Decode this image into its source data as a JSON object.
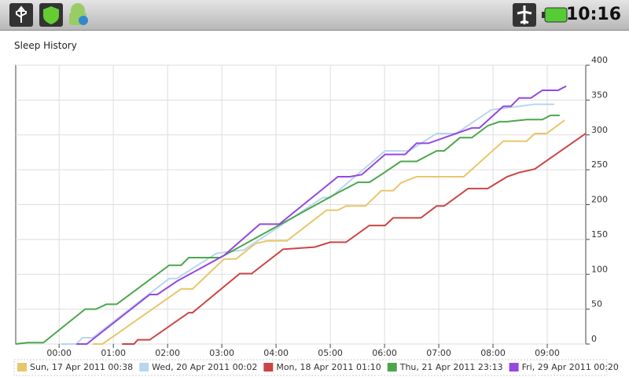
{
  "status_bar": {
    "time": "10:16"
  },
  "chart_data": {
    "type": "line",
    "title": "Sleep History",
    "xlim": [
      -0.8,
      9.71
    ],
    "ylim": [
      0,
      400
    ],
    "xticks": [
      {
        "value": 0,
        "label": "00:00"
      },
      {
        "value": 1,
        "label": "01:00"
      },
      {
        "value": 2,
        "label": "02:00"
      },
      {
        "value": 3,
        "label": "03:00"
      },
      {
        "value": 4,
        "label": "04:00"
      },
      {
        "value": 5,
        "label": "05:00"
      },
      {
        "value": 6,
        "label": "06:00"
      },
      {
        "value": 7,
        "label": "07:00"
      },
      {
        "value": 8,
        "label": "08:00"
      },
      {
        "value": 9,
        "label": "09:00"
      }
    ],
    "yticks": [
      0,
      50,
      100,
      150,
      200,
      250,
      300,
      350,
      400
    ],
    "grid": true,
    "y_axis_side": "right",
    "series": [
      {
        "name": "Sun, 17 Apr 2011 00:38",
        "color": "#e8c66a",
        "x": [
          0.62,
          0.8,
          2.25,
          2.46,
          3.04,
          3.26,
          3.62,
          3.84,
          4.2,
          4.93,
          5.14,
          5.29,
          5.65,
          5.94,
          6.16,
          6.3,
          6.59,
          7.46,
          8.19,
          8.62,
          8.77,
          8.99,
          9.32
        ],
        "values": [
          0,
          0,
          79,
          79,
          122,
          122,
          144,
          148,
          148,
          192,
          192,
          198,
          198,
          220,
          220,
          231,
          240,
          240,
          291,
          291,
          302,
          302,
          321
        ]
      },
      {
        "name": "Wed, 20 Apr 2011 00:02",
        "color": "#b7d6ef",
        "x": [
          0.04,
          0.32,
          0.43,
          0.62,
          2.03,
          2.17,
          2.9,
          3.41,
          4.86,
          5.0,
          6.01,
          6.45,
          6.96,
          7.32,
          7.97,
          8.48,
          8.77,
          9.13
        ],
        "values": [
          0,
          0,
          9,
          9,
          94,
          94,
          130,
          135,
          210,
          210,
          277,
          277,
          302,
          302,
          336,
          341,
          344,
          344
        ]
      },
      {
        "name": "Mon, 18 Apr 2011 01:10",
        "color": "#cc4444",
        "x": [
          1.16,
          1.38,
          1.45,
          1.67,
          2.39,
          2.46,
          3.33,
          3.55,
          4.13,
          4.71,
          5.0,
          5.29,
          5.72,
          6.01,
          6.16,
          6.67,
          6.96,
          7.1,
          7.54,
          7.9,
          8.26,
          8.48,
          8.77,
          9.71
        ],
        "values": [
          0,
          0,
          6,
          6,
          45,
          45,
          101,
          101,
          136,
          139,
          146,
          146,
          170,
          170,
          181,
          181,
          198,
          198,
          223,
          223,
          240,
          246,
          251,
          302
        ]
      },
      {
        "name": "Thu, 21 Apr 2011 23:13",
        "color": "#4ca64c",
        "x": [
          -0.8,
          -0.58,
          -0.29,
          0.48,
          0.68,
          0.87,
          1.06,
          2.03,
          2.25,
          2.39,
          2.97,
          5.14,
          5.51,
          5.72,
          5.94,
          6.3,
          6.59,
          6.96,
          7.1,
          7.39,
          7.61,
          7.9,
          8.12,
          8.26,
          8.62,
          8.91,
          9.06,
          9.23
        ],
        "values": [
          0,
          2,
          2,
          50,
          50,
          57,
          57,
          113,
          113,
          124,
          124,
          217,
          232,
          232,
          243,
          262,
          262,
          277,
          277,
          296,
          296,
          313,
          319,
          319,
          322,
          322,
          328,
          328
        ]
      },
      {
        "name": "Fri, 29 Apr 2011 00:20",
        "color": "#9448e0",
        "x": [
          0.32,
          0.51,
          1.67,
          1.81,
          2.17,
          3.04,
          3.7,
          4.06,
          5.14,
          5.36,
          5.58,
          6.01,
          6.38,
          6.59,
          6.81,
          7.61,
          7.75,
          8.19,
          8.33,
          8.48,
          8.7,
          8.91,
          9.2,
          9.35
        ],
        "values": [
          0,
          0,
          71,
          71,
          90,
          127,
          172,
          172,
          240,
          240,
          243,
          272,
          272,
          288,
          288,
          310,
          310,
          341,
          341,
          353,
          353,
          364,
          364,
          370
        ]
      }
    ]
  }
}
